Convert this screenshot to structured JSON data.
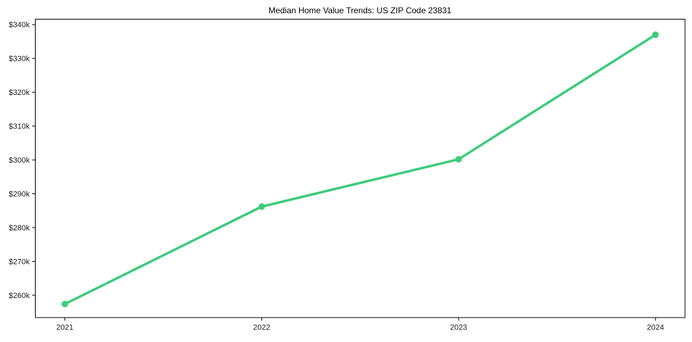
{
  "chart_data": {
    "type": "line",
    "title": "Median Home Value Trends: US ZIP Code 23831",
    "x": [
      2021,
      2022,
      2023,
      2024
    ],
    "series": [
      {
        "name": "Median Home Value",
        "values": [
          257400,
          286200,
          300200,
          337000
        ]
      }
    ],
    "x_tick_labels": [
      "2021",
      "2022",
      "2023",
      "2024"
    ],
    "y_ticks": [
      260000,
      270000,
      280000,
      290000,
      300000,
      310000,
      320000,
      330000,
      340000
    ],
    "y_tick_labels": [
      "$260k",
      "$270k",
      "$280k",
      "$290k",
      "$300k",
      "$310k",
      "$320k",
      "$330k",
      "$340k"
    ],
    "xlabel": "",
    "ylabel": "",
    "xlim": [
      2020.85,
      2024.15
    ],
    "ylim": [
      253400,
      341600
    ],
    "grid": false,
    "legend": null,
    "colors": {
      "line": "#3ecb7a",
      "marker": "#3ecb7a",
      "axis": "#000000",
      "tick_label": "#1a1a1a",
      "background": "#ffffff"
    }
  }
}
